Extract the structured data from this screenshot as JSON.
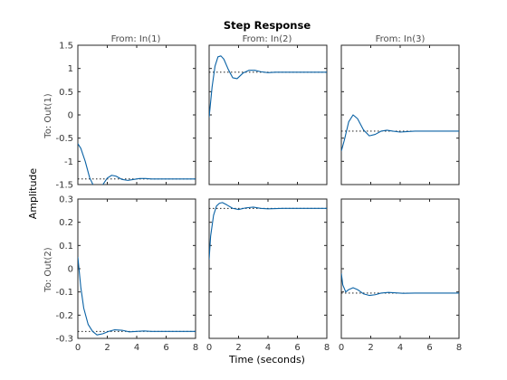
{
  "chart_data": {
    "type": "line",
    "title": "Step Response",
    "xlabel": "Time (seconds)",
    "ylabel": "Amplitude",
    "inputs": [
      "From: In(1)",
      "From: In(2)",
      "From: In(3)"
    ],
    "outputs": [
      "To: Out(1)",
      "To: Out(2)"
    ],
    "xlim": [
      0,
      8
    ],
    "xticks": [
      "0",
      "2",
      "4",
      "6",
      "8"
    ],
    "rows": [
      {
        "ylim": [
          -1.5,
          1.5
        ],
        "yticks": [
          "1.5",
          "1",
          "0.5",
          "0",
          "-0.5",
          "-1",
          "-1.5"
        ]
      },
      {
        "ylim": [
          -0.3,
          0.3
        ],
        "yticks": [
          "0.3",
          "0.2",
          "0.1",
          "0",
          "-0.1",
          "-0.2",
          "-0.3"
        ]
      }
    ],
    "line_color": "#0a62a5",
    "grid": false,
    "panels": [
      {
        "row": 0,
        "col": 0,
        "final_value": -1.38,
        "points": [
          [
            0,
            -0.62
          ],
          [
            0.2,
            -0.72
          ],
          [
            0.5,
            -1.0
          ],
          [
            0.8,
            -1.35
          ],
          [
            1.1,
            -1.55
          ],
          [
            1.4,
            -1.58
          ],
          [
            1.7,
            -1.5
          ],
          [
            2.0,
            -1.36
          ],
          [
            2.3,
            -1.3
          ],
          [
            2.6,
            -1.32
          ],
          [
            3.0,
            -1.39
          ],
          [
            3.4,
            -1.41
          ],
          [
            3.8,
            -1.39
          ],
          [
            4.2,
            -1.37
          ],
          [
            4.6,
            -1.37
          ],
          [
            5.0,
            -1.38
          ],
          [
            5.5,
            -1.38
          ],
          [
            8,
            -1.38
          ]
        ]
      },
      {
        "row": 0,
        "col": 1,
        "final_value": 0.92,
        "points": [
          [
            0,
            -0.05
          ],
          [
            0.2,
            0.6
          ],
          [
            0.4,
            1.05
          ],
          [
            0.6,
            1.25
          ],
          [
            0.8,
            1.27
          ],
          [
            1.0,
            1.2
          ],
          [
            1.3,
            0.98
          ],
          [
            1.6,
            0.8
          ],
          [
            1.9,
            0.78
          ],
          [
            2.3,
            0.9
          ],
          [
            2.7,
            0.96
          ],
          [
            3.1,
            0.96
          ],
          [
            3.5,
            0.93
          ],
          [
            4.0,
            0.91
          ],
          [
            4.5,
            0.92
          ],
          [
            5.0,
            0.92
          ],
          [
            8,
            0.92
          ]
        ]
      },
      {
        "row": 0,
        "col": 2,
        "final_value": -0.35,
        "points": [
          [
            0,
            -0.78
          ],
          [
            0.2,
            -0.55
          ],
          [
            0.5,
            -0.15
          ],
          [
            0.8,
            0.0
          ],
          [
            1.1,
            -0.08
          ],
          [
            1.5,
            -0.32
          ],
          [
            1.9,
            -0.45
          ],
          [
            2.3,
            -0.42
          ],
          [
            2.7,
            -0.35
          ],
          [
            3.1,
            -0.33
          ],
          [
            3.5,
            -0.35
          ],
          [
            4.0,
            -0.37
          ],
          [
            4.5,
            -0.36
          ],
          [
            5.0,
            -0.35
          ],
          [
            8,
            -0.35
          ]
        ]
      },
      {
        "row": 1,
        "col": 0,
        "final_value": -0.27,
        "points": [
          [
            0,
            0.05
          ],
          [
            0.2,
            -0.08
          ],
          [
            0.4,
            -0.17
          ],
          [
            0.7,
            -0.24
          ],
          [
            1.0,
            -0.27
          ],
          [
            1.3,
            -0.285
          ],
          [
            1.7,
            -0.28
          ],
          [
            2.1,
            -0.27
          ],
          [
            2.5,
            -0.263
          ],
          [
            3.0,
            -0.265
          ],
          [
            3.5,
            -0.272
          ],
          [
            4.0,
            -0.27
          ],
          [
            4.5,
            -0.268
          ],
          [
            5.0,
            -0.27
          ],
          [
            8,
            -0.27
          ]
        ]
      },
      {
        "row": 1,
        "col": 1,
        "final_value": 0.26,
        "points": [
          [
            0,
            0.04
          ],
          [
            0.1,
            0.14
          ],
          [
            0.3,
            0.23
          ],
          [
            0.5,
            0.27
          ],
          [
            0.7,
            0.282
          ],
          [
            0.9,
            0.285
          ],
          [
            1.2,
            0.275
          ],
          [
            1.6,
            0.26
          ],
          [
            2.0,
            0.255
          ],
          [
            2.5,
            0.262
          ],
          [
            3.0,
            0.265
          ],
          [
            3.5,
            0.26
          ],
          [
            4.0,
            0.258
          ],
          [
            5.0,
            0.26
          ],
          [
            8,
            0.26
          ]
        ]
      },
      {
        "row": 1,
        "col": 2,
        "final_value": -0.105,
        "points": [
          [
            0,
            -0.02
          ],
          [
            0.1,
            -0.07
          ],
          [
            0.3,
            -0.1
          ],
          [
            0.5,
            -0.09
          ],
          [
            0.8,
            -0.082
          ],
          [
            1.1,
            -0.09
          ],
          [
            1.5,
            -0.108
          ],
          [
            1.9,
            -0.115
          ],
          [
            2.3,
            -0.112
          ],
          [
            2.7,
            -0.105
          ],
          [
            3.2,
            -0.102
          ],
          [
            3.7,
            -0.104
          ],
          [
            4.2,
            -0.106
          ],
          [
            5.0,
            -0.105
          ],
          [
            8,
            -0.105
          ]
        ]
      }
    ]
  }
}
